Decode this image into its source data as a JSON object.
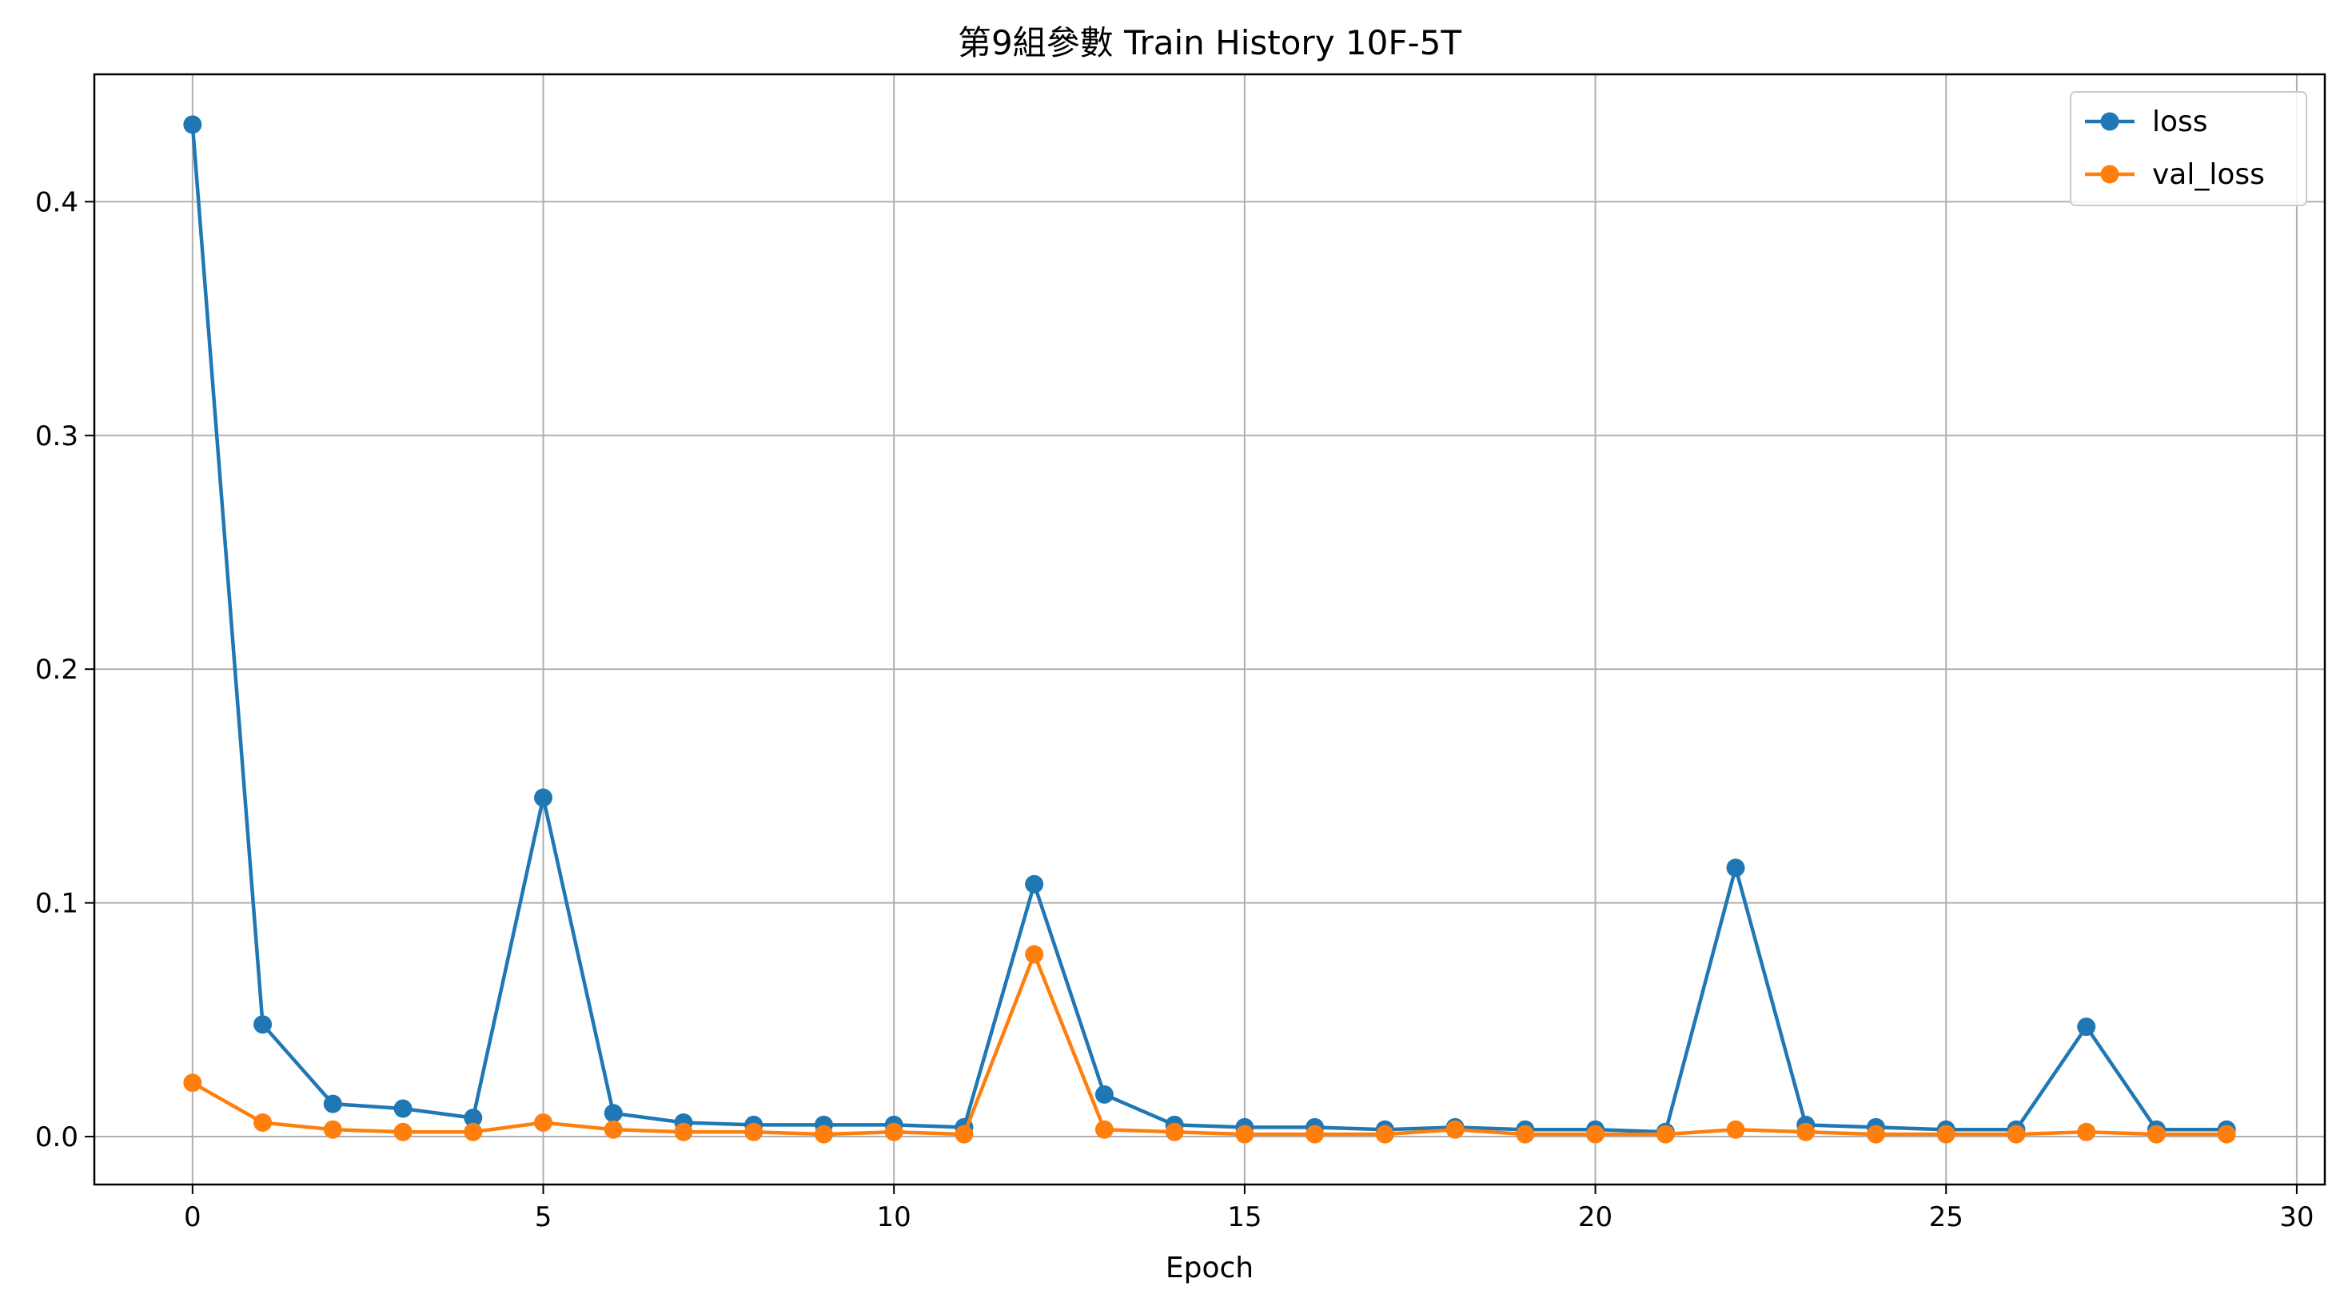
{
  "chart_data": {
    "type": "line",
    "title": "第9組參數 Train History 10F-5T",
    "xlabel": "Epoch",
    "ylabel": "",
    "xlim": [
      -1.4,
      30.4
    ],
    "ylim": [
      -0.0205,
      0.4545
    ],
    "xticks": [
      0,
      5,
      10,
      15,
      20,
      25,
      30
    ],
    "yticks": [
      0.0,
      0.1,
      0.2,
      0.3,
      0.4
    ],
    "ytick_labels": [
      "0.0",
      "0.1",
      "0.2",
      "0.3",
      "0.4"
    ],
    "grid": true,
    "legend_position": "top-right",
    "x": [
      0,
      1,
      2,
      3,
      4,
      5,
      6,
      7,
      8,
      9,
      10,
      11,
      12,
      13,
      14,
      15,
      16,
      17,
      18,
      19,
      20,
      21,
      22,
      23,
      24,
      25,
      26,
      27,
      28,
      29
    ],
    "series": [
      {
        "name": "loss",
        "color": "#1f77b4",
        "values": [
          0.433,
          0.048,
          0.014,
          0.012,
          0.008,
          0.145,
          0.01,
          0.006,
          0.005,
          0.005,
          0.005,
          0.004,
          0.108,
          0.018,
          0.005,
          0.004,
          0.004,
          0.003,
          0.004,
          0.003,
          0.003,
          0.002,
          0.115,
          0.005,
          0.004,
          0.003,
          0.003,
          0.047,
          0.003,
          0.003
        ]
      },
      {
        "name": "val_loss",
        "color": "#ff7f0e",
        "values": [
          0.023,
          0.006,
          0.003,
          0.002,
          0.002,
          0.006,
          0.003,
          0.002,
          0.002,
          0.001,
          0.002,
          0.001,
          0.078,
          0.003,
          0.002,
          0.001,
          0.001,
          0.001,
          0.003,
          0.001,
          0.001,
          0.001,
          0.003,
          0.002,
          0.001,
          0.001,
          0.001,
          0.002,
          0.001,
          0.001
        ]
      }
    ]
  }
}
